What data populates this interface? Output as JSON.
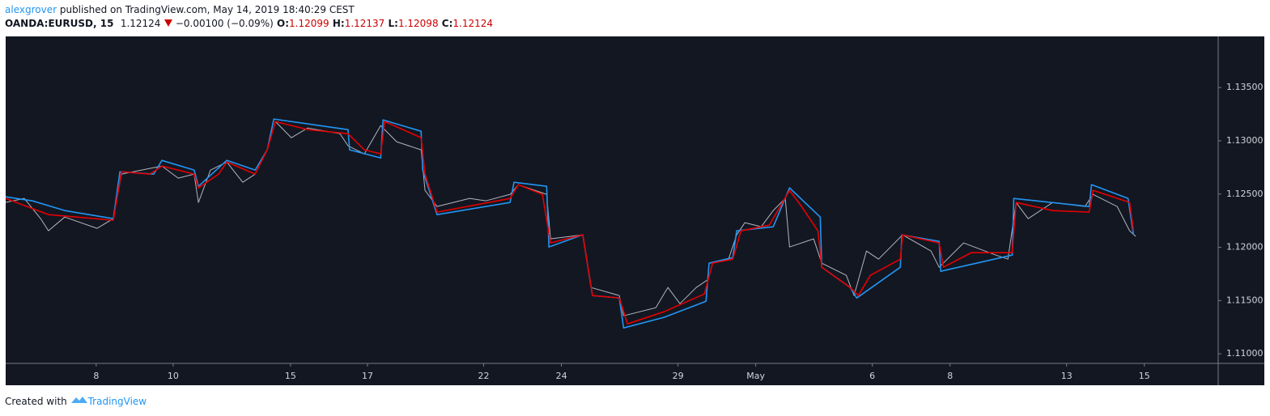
{
  "header": {
    "author": "alexgrover",
    "published": "published on TradingView.com, May 14, 2019 18:40:29 CEST"
  },
  "symbol_bar": {
    "symbol": "OANDA:EURUSD, 15",
    "last": "1.12124",
    "change": "−0.00100 (−0.09%)",
    "open_label": "O:",
    "open": "1.12099",
    "high_label": "H:",
    "high": "1.12137",
    "low_label": "L:",
    "low": "1.12098",
    "close_label": "C:",
    "close": "1.12124"
  },
  "footer": {
    "created_with": "Created with",
    "brand": "TradingView"
  },
  "chart_data": {
    "type": "line",
    "background": "#131722",
    "xlim": [
      0,
      31.2
    ],
    "xticks": [
      {
        "value": 2.33,
        "label": "8"
      },
      {
        "value": 4.31,
        "label": "10"
      },
      {
        "value": 7.33,
        "label": "15"
      },
      {
        "value": 9.31,
        "label": "17"
      },
      {
        "value": 12.3,
        "label": "22"
      },
      {
        "value": 14.3,
        "label": "24"
      },
      {
        "value": 17.3,
        "label": "29"
      },
      {
        "value": 19.3,
        "label": "May"
      },
      {
        "value": 22.3,
        "label": "6"
      },
      {
        "value": 24.3,
        "label": "8"
      },
      {
        "value": 27.3,
        "label": "13"
      },
      {
        "value": 29.3,
        "label": "15"
      }
    ],
    "ylim": [
      1.1091,
      1.1398
    ],
    "yticks": [
      {
        "value": 1.11,
        "label": "1.11000"
      },
      {
        "value": 1.115,
        "label": "1.11500"
      },
      {
        "value": 1.12,
        "label": "1.12000"
      },
      {
        "value": 1.125,
        "label": "1.12500"
      },
      {
        "value": 1.13,
        "label": "1.13000"
      },
      {
        "value": 1.135,
        "label": "1.13500"
      }
    ],
    "grid": false,
    "series": [
      {
        "color": "#b2b5be",
        "width": 1,
        "x": [
          0,
          0.48,
          0.9,
          1.1,
          1.52,
          2.35,
          2.77,
          2.98,
          4.02,
          4.44,
          4.85,
          4.96,
          5.27,
          5.69,
          6.1,
          6.42,
          6.73,
          6.94,
          7.35,
          7.77,
          8.6,
          8.81,
          9.23,
          9.65,
          10.06,
          10.69,
          10.79,
          11.1,
          11.94,
          12.35,
          12.98,
          13.19,
          13.92,
          14.02,
          14.85,
          15.06,
          15.79,
          15.9,
          16.73,
          17.04,
          17.35,
          17.77,
          18.08,
          18.19,
          18.6,
          18.81,
          19.02,
          19.44,
          19.75,
          20.06,
          20.17,
          20.79,
          21.0,
          21.63,
          21.83,
          22.15,
          22.46,
          22.77,
          23.08,
          23.81,
          24.02,
          24.65,
          25.48,
          25.79,
          26.0,
          26.31,
          26.94,
          27.77,
          27.98,
          28.6,
          28.92,
          29.08
        ],
        "values": [
          1.12421,
          1.12459,
          1.12269,
          1.12155,
          1.12284,
          1.12178,
          1.12269,
          1.12687,
          1.12763,
          1.12649,
          1.12687,
          1.12421,
          1.12725,
          1.12801,
          1.12611,
          1.12687,
          1.12915,
          1.13181,
          1.13029,
          1.1312,
          1.13067,
          1.12953,
          1.12877,
          1.13143,
          1.12991,
          1.12915,
          1.12535,
          1.12383,
          1.12459,
          1.12436,
          1.12497,
          1.12588,
          1.12497,
          1.12079,
          1.12117,
          1.11623,
          1.11547,
          1.11357,
          1.11433,
          1.11623,
          1.11471,
          1.11623,
          1.11699,
          1.11851,
          1.11889,
          1.12117,
          1.12231,
          1.12193,
          1.12345,
          1.12459,
          1.12003,
          1.12079,
          1.11851,
          1.11737,
          1.11547,
          1.11965,
          1.11889,
          1.12003,
          1.12117,
          1.11965,
          1.11813,
          1.12041,
          1.11927,
          1.11889,
          1.12421,
          1.12269,
          1.12421,
          1.12383,
          1.12497,
          1.12383,
          1.12155,
          1.12102
        ]
      },
      {
        "color": "#2196f3",
        "width": 1.6,
        "x": [
          0,
          0.69,
          1.52,
          2.77,
          2.94,
          3.81,
          4.02,
          4.85,
          4.96,
          5.69,
          6.42,
          6.73,
          6.9,
          8.81,
          8.85,
          9.65,
          9.71,
          10.69,
          10.73,
          11.1,
          12.98,
          13.08,
          13.92,
          13.98,
          14.85,
          15.1,
          15.79,
          15.9,
          16.94,
          18.02,
          18.1,
          18.71,
          18.81,
          19.75,
          20.17,
          20.96,
          21.0,
          21.73,
          21.9,
          23.02,
          23.06,
          24.02,
          24.06,
          25.9,
          25.94,
          27.88,
          27.94,
          28.88,
          29.02
        ],
        "values": [
          1.12474,
          1.12436,
          1.12345,
          1.12269,
          1.1271,
          1.12687,
          1.12816,
          1.12725,
          1.12573,
          1.12816,
          1.12725,
          1.12915,
          1.13204,
          1.13105,
          1.12915,
          1.12839,
          1.13196,
          1.1309,
          1.12725,
          1.12307,
          1.12421,
          1.12611,
          1.12573,
          1.12003,
          1.12117,
          1.11547,
          1.11524,
          1.11243,
          1.11342,
          1.11493,
          1.11851,
          1.11904,
          1.12155,
          1.12193,
          1.12558,
          1.12284,
          1.11813,
          1.11623,
          1.11524,
          1.11813,
          1.12117,
          1.12056,
          1.11775,
          1.11927,
          1.12459,
          1.12383,
          1.12588,
          1.12459,
          1.12117
        ]
      },
      {
        "color": "#e50000",
        "width": 1.6,
        "x": [
          0,
          1.1,
          2.77,
          2.98,
          3.71,
          4.02,
          4.85,
          4.96,
          5.48,
          5.69,
          6.42,
          6.73,
          6.94,
          7.77,
          8.81,
          9.23,
          9.65,
          9.75,
          10.69,
          10.79,
          11.1,
          12.98,
          13.19,
          13.81,
          14.02,
          14.85,
          15.1,
          15.79,
          16.0,
          16.94,
          17.98,
          18.19,
          18.71,
          18.92,
          19.65,
          20.17,
          20.48,
          20.9,
          21.0,
          21.73,
          21.94,
          22.25,
          23.02,
          23.08,
          24.02,
          24.13,
          24.85,
          25.9,
          26.0,
          26.94,
          27.88,
          27.98,
          28.92,
          29.02
        ],
        "values": [
          1.12459,
          1.12307,
          1.12254,
          1.1271,
          1.12687,
          1.12763,
          1.12687,
          1.12558,
          1.12687,
          1.12801,
          1.12687,
          1.12915,
          1.13181,
          1.13105,
          1.13067,
          1.12915,
          1.12877,
          1.13181,
          1.13029,
          1.12687,
          1.1233,
          1.12459,
          1.12588,
          1.12497,
          1.12041,
          1.12117,
          1.11547,
          1.11524,
          1.11281,
          1.11395,
          1.11562,
          1.11851,
          1.11889,
          1.12155,
          1.12208,
          1.12535,
          1.12383,
          1.12155,
          1.11813,
          1.11623,
          1.11547,
          1.11737,
          1.11889,
          1.12117,
          1.12041,
          1.11813,
          1.1195,
          1.1195,
          1.12421,
          1.12345,
          1.1233,
          1.12535,
          1.12421,
          1.12155
        ]
      }
    ]
  }
}
